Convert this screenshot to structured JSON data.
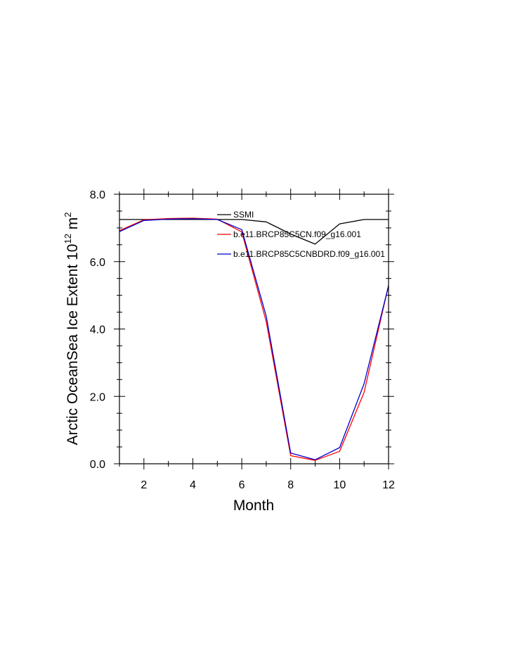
{
  "chart_data": {
    "type": "line",
    "title": "",
    "xlabel": "Month",
    "ylabel": {
      "main": "Arctic OceanSea Ice Extent 10",
      "sup1": "12",
      "mid": " m",
      "sup2": "2"
    },
    "xlim": [
      1,
      12
    ],
    "ylim": [
      0,
      8
    ],
    "x_ticks": [
      2,
      4,
      6,
      8,
      10,
      12
    ],
    "x_tick_labels": [
      "2",
      "4",
      "6",
      "8",
      "10",
      "12"
    ],
    "y_ticks": [
      0,
      2,
      4,
      6,
      8
    ],
    "y_tick_labels": [
      "0.0",
      "2.0",
      "4.0",
      "6.0",
      "8.0"
    ],
    "grid": false,
    "legend_position": "top-right",
    "x": [
      1,
      2,
      3,
      4,
      5,
      6,
      7,
      8,
      9,
      10,
      11,
      12
    ],
    "series": [
      {
        "name": "SSMI",
        "color": "#000000",
        "values": [
          7.25,
          7.25,
          7.25,
          7.25,
          7.25,
          7.25,
          7.18,
          6.82,
          6.52,
          7.12,
          7.25,
          7.25
        ]
      },
      {
        "name": "b.e11.BRCP85C5CN.f09_g16.001",
        "color": "#ff0000",
        "values": [
          6.92,
          7.24,
          7.28,
          7.29,
          7.26,
          6.88,
          4.22,
          0.24,
          0.1,
          0.37,
          2.12,
          5.3
        ]
      },
      {
        "name": "b.e11.BRCP85C5CNBDRD.f09_g16.001",
        "color": "#0000cc",
        "values": [
          6.89,
          7.22,
          7.26,
          7.27,
          7.25,
          6.95,
          4.38,
          0.32,
          0.12,
          0.48,
          2.38,
          5.28
        ]
      }
    ]
  }
}
